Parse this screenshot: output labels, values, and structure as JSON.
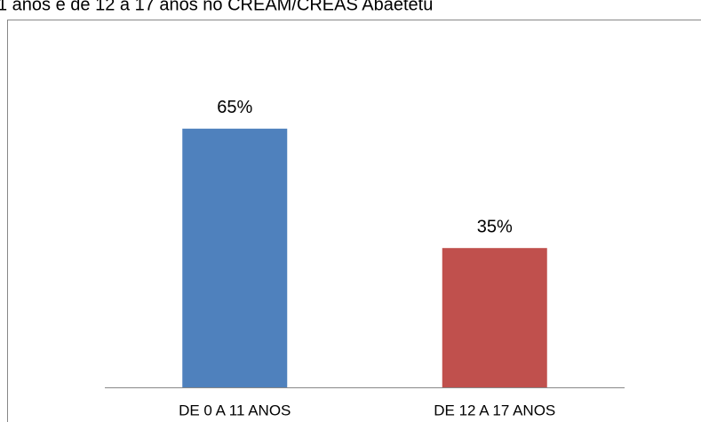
{
  "chart_data": {
    "type": "bar",
    "title": "1 anos e de 12 a 17 anos no CREAM/CREAS Abaetetu",
    "categories": [
      "DE 0 A 11 ANOS",
      "DE 12 A 17 ANOS"
    ],
    "values": [
      65,
      35
    ],
    "value_labels": [
      "65%",
      "35%"
    ],
    "colors": [
      "#4f81bd",
      "#c0504d"
    ]
  }
}
